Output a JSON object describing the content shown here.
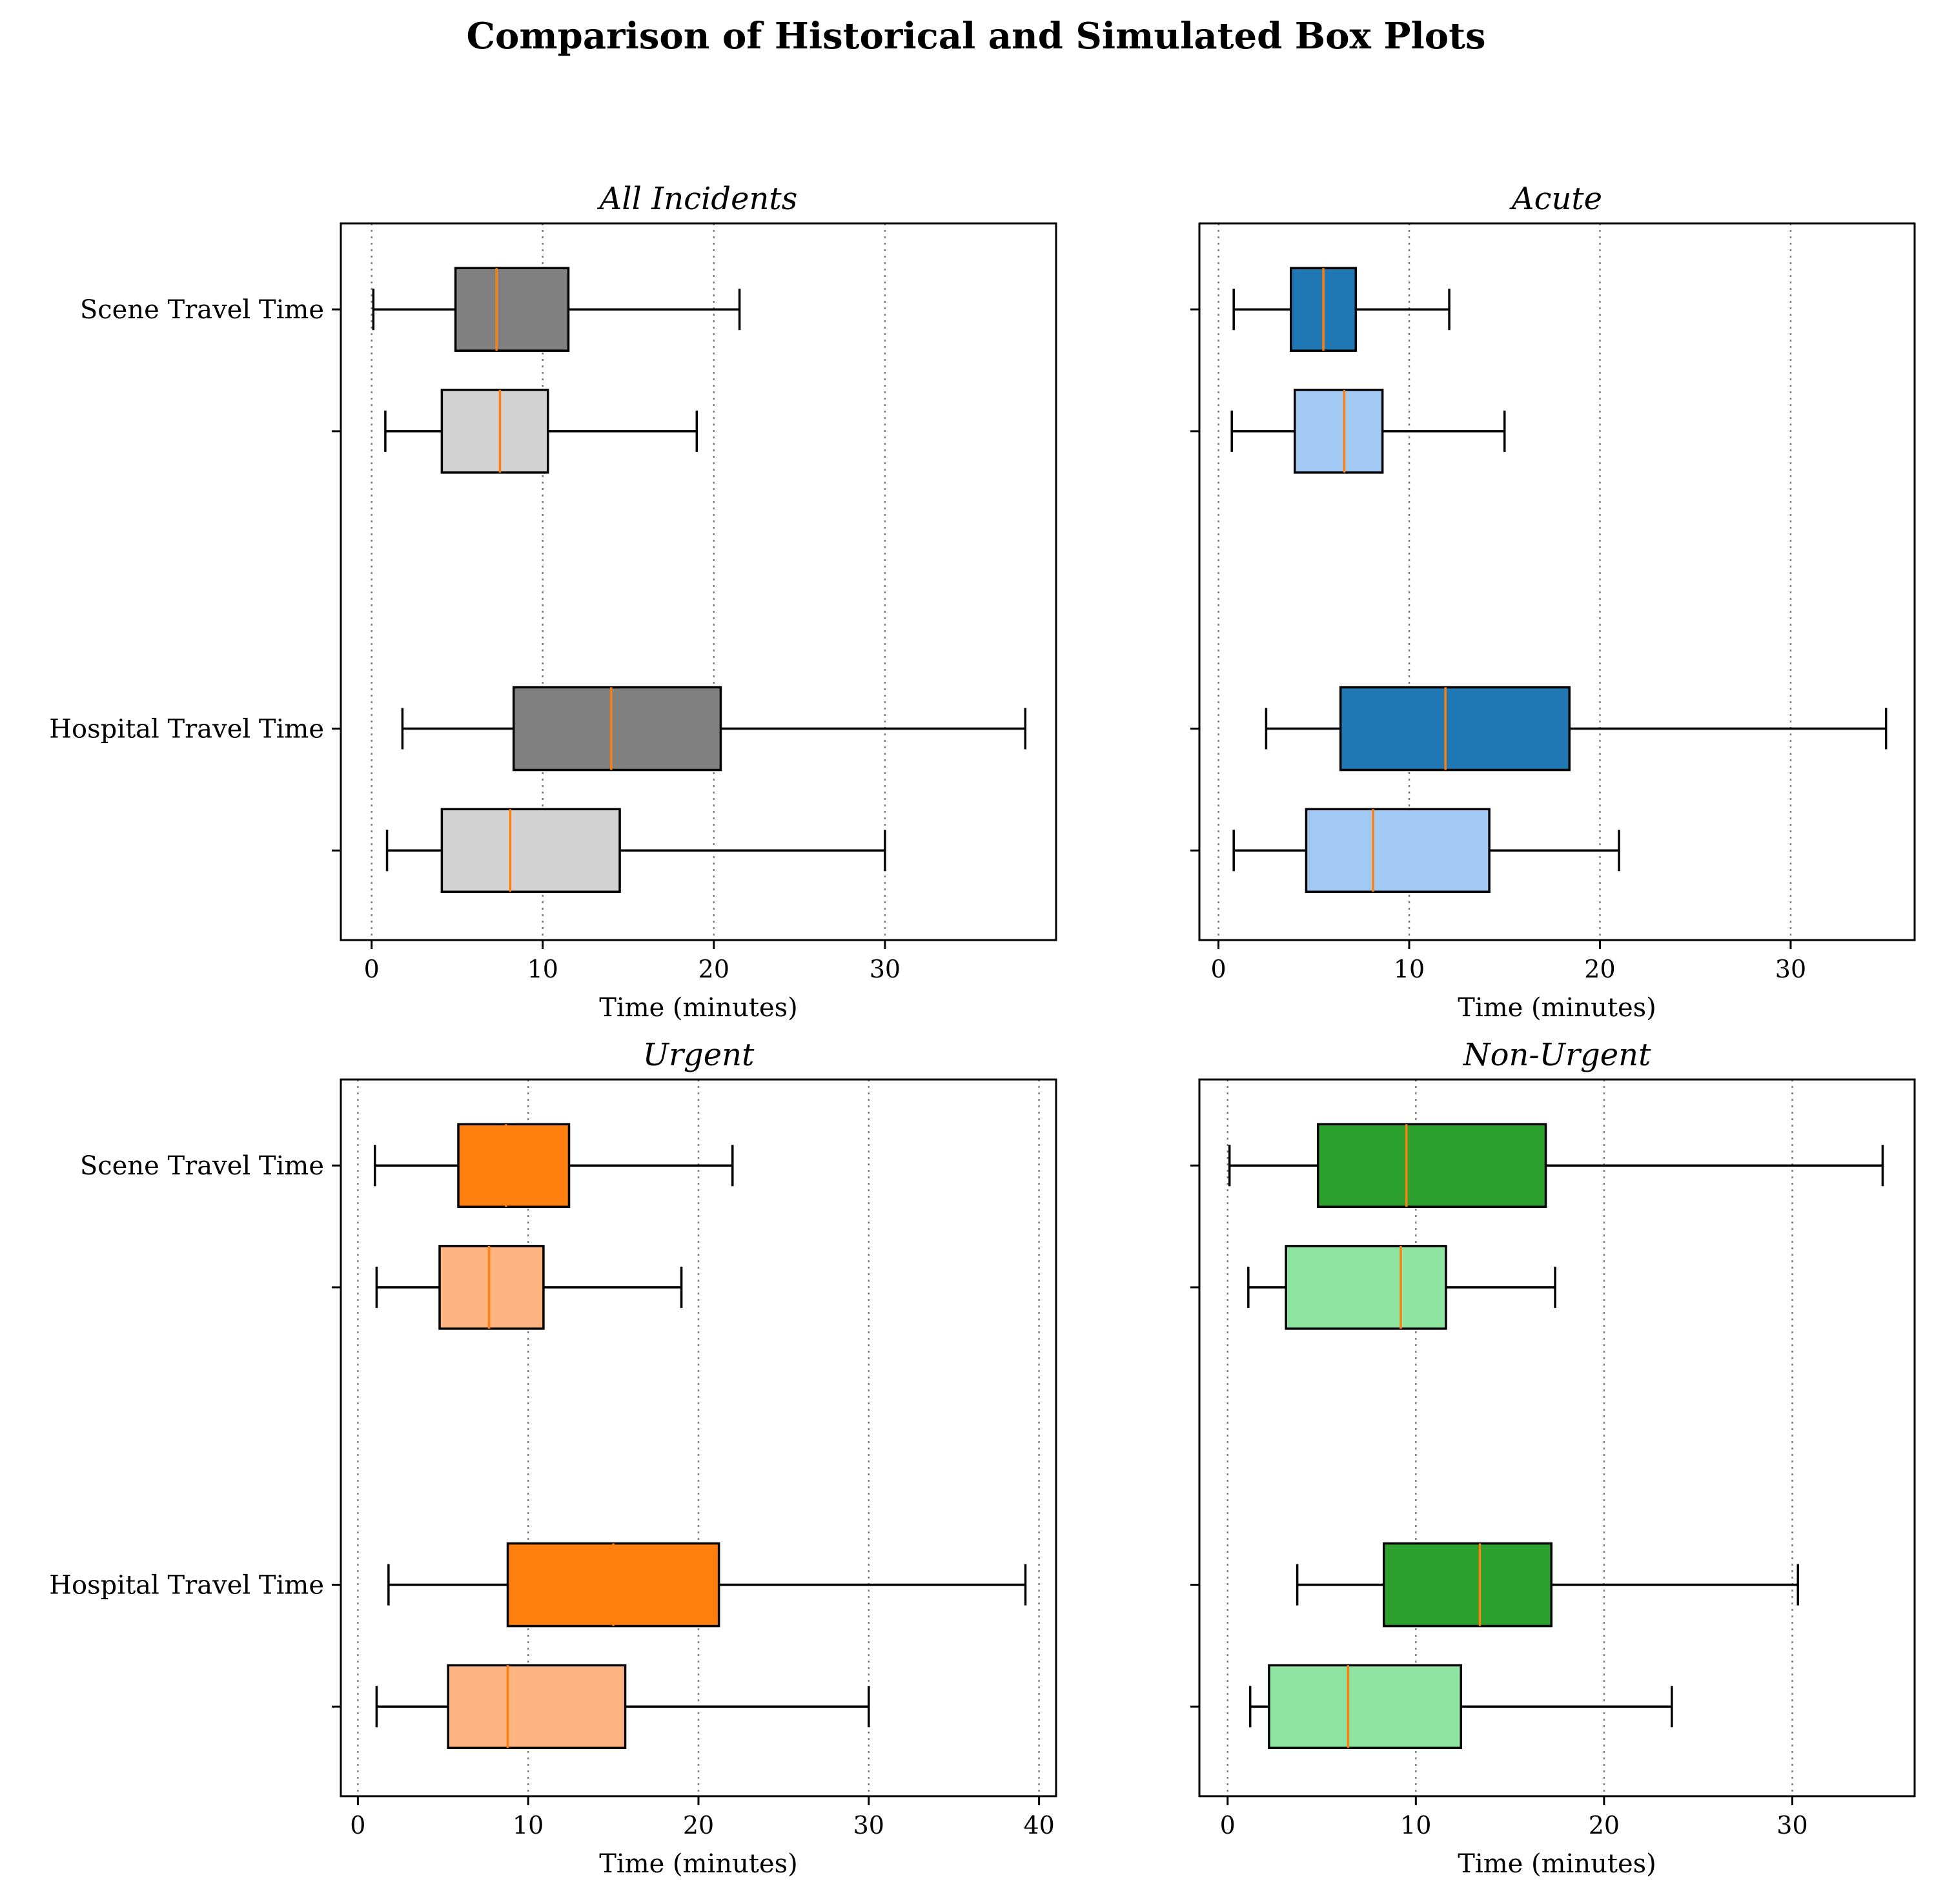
{
  "chart_data": {
    "title": "Comparison of Historical and Simulated Box Plots",
    "type": "boxplot",
    "orientation": "horizontal",
    "categories": [
      "Scene Travel Time",
      "Hospital Travel Time"
    ],
    "grid": "vertical dotted",
    "median_color": "#ff7f0e",
    "panels": [
      {
        "title": "All Incidents",
        "xlabel": "Time (minutes)",
        "xlim": [
          -1.8,
          40
        ],
        "xticks": [
          0,
          10,
          20,
          30
        ],
        "colors": {
          "dark": "#808080",
          "light": "#d3d3d3"
        },
        "boxes": [
          {
            "category": "Scene Travel Time",
            "shade": "dark",
            "whislo": 0.1,
            "q1": 4.9,
            "med": 7.3,
            "q3": 11.5,
            "whishi": 21.5
          },
          {
            "category": "Scene Travel Time",
            "shade": "light",
            "whislo": 0.8,
            "q1": 4.1,
            "med": 7.5,
            "q3": 10.3,
            "whishi": 19.0
          },
          {
            "category": "Hospital Travel Time",
            "shade": "dark",
            "whislo": 1.8,
            "q1": 8.3,
            "med": 14.0,
            "q3": 20.4,
            "whishi": 38.2
          },
          {
            "category": "Hospital Travel Time",
            "shade": "light",
            "whislo": 0.9,
            "q1": 4.1,
            "med": 8.1,
            "q3": 14.5,
            "whishi": 30.0
          }
        ]
      },
      {
        "title": "Acute",
        "xlabel": "Time (minutes)",
        "xlim": [
          -1.0,
          36.5
        ],
        "xticks": [
          0,
          10,
          20,
          30
        ],
        "colors": {
          "dark": "#1f77b4",
          "light": "#a1c9f4"
        },
        "boxes": [
          {
            "category": "Scene Travel Time",
            "shade": "dark",
            "whislo": 0.8,
            "q1": 3.8,
            "med": 5.5,
            "q3": 7.2,
            "whishi": 12.1
          },
          {
            "category": "Scene Travel Time",
            "shade": "light",
            "whislo": 0.7,
            "q1": 4.0,
            "med": 6.6,
            "q3": 8.6,
            "whishi": 15.0
          },
          {
            "category": "Hospital Travel Time",
            "shade": "dark",
            "whislo": 2.5,
            "q1": 6.4,
            "med": 11.9,
            "q3": 18.4,
            "whishi": 35.0
          },
          {
            "category": "Hospital Travel Time",
            "shade": "light",
            "whislo": 0.8,
            "q1": 4.6,
            "med": 8.1,
            "q3": 14.2,
            "whishi": 21.0
          }
        ]
      },
      {
        "title": "Urgent",
        "xlabel": "Time (minutes)",
        "xlim": [
          -1.0,
          41.0
        ],
        "xticks": [
          0,
          10,
          20,
          30,
          40
        ],
        "colors": {
          "dark": "#ff7f0e",
          "light": "#ffb482"
        },
        "boxes": [
          {
            "category": "Scene Travel Time",
            "shade": "dark",
            "whislo": 1.0,
            "q1": 5.9,
            "med": 8.7,
            "q3": 12.4,
            "whishi": 22.0
          },
          {
            "category": "Scene Travel Time",
            "shade": "light",
            "whislo": 1.1,
            "q1": 4.8,
            "med": 7.7,
            "q3": 10.9,
            "whishi": 19.0
          },
          {
            "category": "Hospital Travel Time",
            "shade": "dark",
            "whislo": 1.8,
            "q1": 8.8,
            "med": 15.0,
            "q3": 21.2,
            "whishi": 39.2
          },
          {
            "category": "Hospital Travel Time",
            "shade": "light",
            "whislo": 1.1,
            "q1": 5.3,
            "med": 8.8,
            "q3": 15.7,
            "whishi": 30.0
          }
        ]
      },
      {
        "title": "Non-Urgent",
        "xlabel": "Time (minutes)",
        "xlim": [
          -1.5,
          36.5
        ],
        "xticks": [
          0,
          10,
          20,
          30
        ],
        "colors": {
          "dark": "#2ca02c",
          "light": "#8de5a1"
        },
        "boxes": [
          {
            "category": "Scene Travel Time",
            "shade": "dark",
            "whislo": 0.1,
            "q1": 4.8,
            "med": 9.5,
            "q3": 16.9,
            "whishi": 34.8
          },
          {
            "category": "Scene Travel Time",
            "shade": "light",
            "whislo": 1.1,
            "q1": 3.1,
            "med": 9.2,
            "q3": 11.6,
            "whishi": 17.4
          },
          {
            "category": "Hospital Travel Time",
            "shade": "dark",
            "whislo": 3.7,
            "q1": 8.3,
            "med": 13.4,
            "q3": 17.2,
            "whishi": 30.3
          },
          {
            "category": "Hospital Travel Time",
            "shade": "light",
            "whislo": 1.2,
            "q1": 2.2,
            "med": 6.4,
            "q3": 12.4,
            "whishi": 23.6
          }
        ]
      }
    ]
  }
}
